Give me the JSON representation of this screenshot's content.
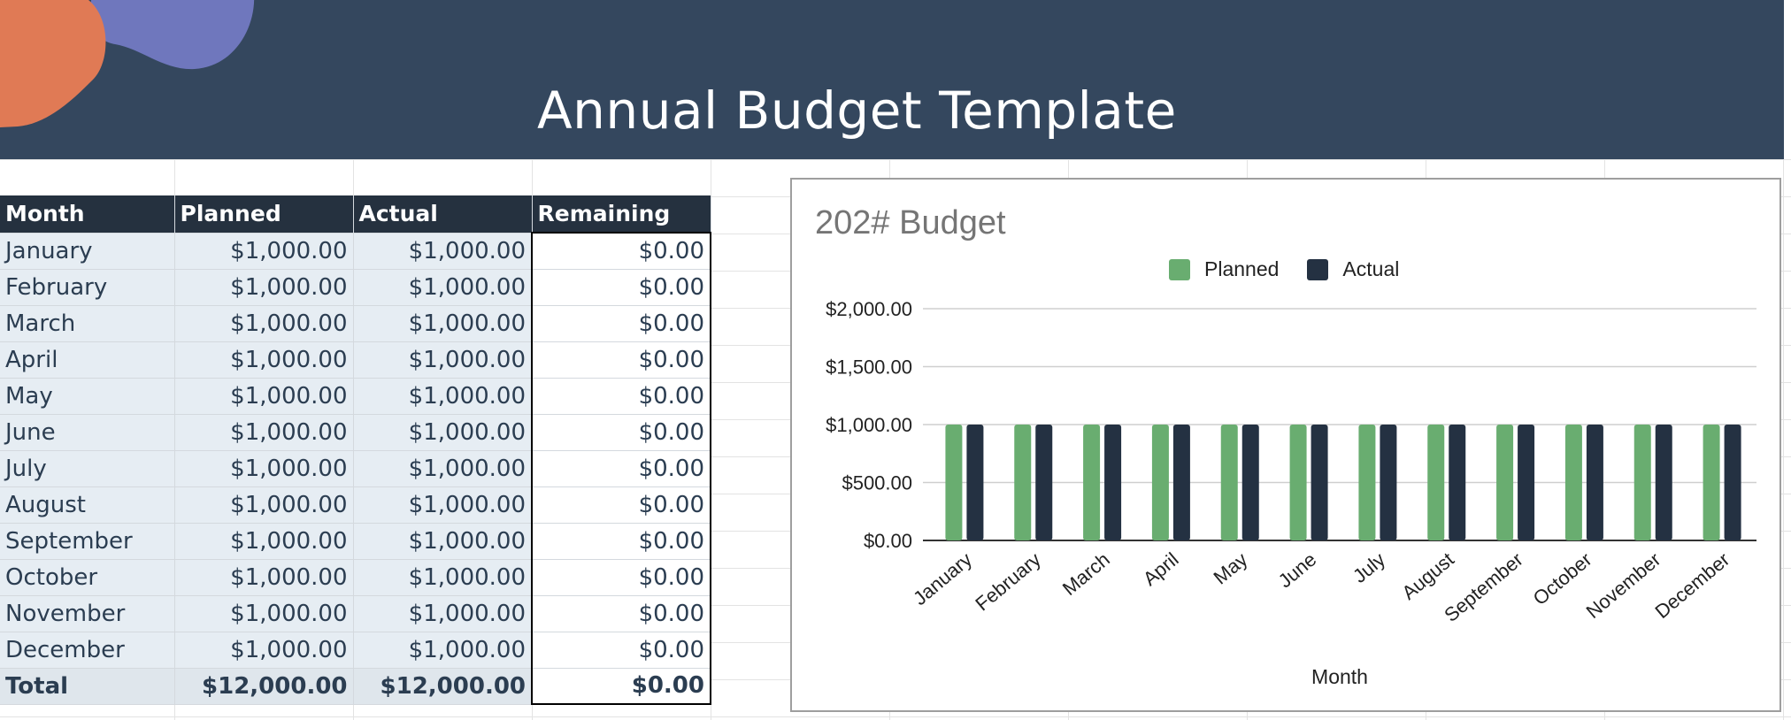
{
  "header": {
    "title": "Annual Budget Template"
  },
  "colors": {
    "banner": "#34475e",
    "blob_orange": "#e07a55",
    "blob_purple": "#6f77bd",
    "planned": "#69ad70",
    "actual": "#243142"
  },
  "table": {
    "columns": [
      "Month",
      "Planned",
      "Actual",
      "Remaining"
    ],
    "rows": [
      {
        "month": "January",
        "planned": "$1,000.00",
        "actual": "$1,000.00",
        "remaining": "$0.00"
      },
      {
        "month": "February",
        "planned": "$1,000.00",
        "actual": "$1,000.00",
        "remaining": "$0.00"
      },
      {
        "month": "March",
        "planned": "$1,000.00",
        "actual": "$1,000.00",
        "remaining": "$0.00"
      },
      {
        "month": "April",
        "planned": "$1,000.00",
        "actual": "$1,000.00",
        "remaining": "$0.00"
      },
      {
        "month": "May",
        "planned": "$1,000.00",
        "actual": "$1,000.00",
        "remaining": "$0.00"
      },
      {
        "month": "June",
        "planned": "$1,000.00",
        "actual": "$1,000.00",
        "remaining": "$0.00"
      },
      {
        "month": "July",
        "planned": "$1,000.00",
        "actual": "$1,000.00",
        "remaining": "$0.00"
      },
      {
        "month": "August",
        "planned": "$1,000.00",
        "actual": "$1,000.00",
        "remaining": "$0.00"
      },
      {
        "month": "September",
        "planned": "$1,000.00",
        "actual": "$1,000.00",
        "remaining": "$0.00"
      },
      {
        "month": "October",
        "planned": "$1,000.00",
        "actual": "$1,000.00",
        "remaining": "$0.00"
      },
      {
        "month": "November",
        "planned": "$1,000.00",
        "actual": "$1,000.00",
        "remaining": "$0.00"
      },
      {
        "month": "December",
        "planned": "$1,000.00",
        "actual": "$1,000.00",
        "remaining": "$0.00"
      }
    ],
    "total": {
      "label": "Total",
      "planned": "$12,000.00",
      "actual": "$12,000.00",
      "remaining": "$0.00"
    }
  },
  "chart_data": {
    "type": "bar",
    "title": "202# Budget",
    "xlabel": "Month",
    "ylabel": "",
    "categories": [
      "January",
      "February",
      "March",
      "April",
      "May",
      "June",
      "July",
      "August",
      "September",
      "October",
      "November",
      "December"
    ],
    "series": [
      {
        "name": "Planned",
        "values": [
          1000,
          1000,
          1000,
          1000,
          1000,
          1000,
          1000,
          1000,
          1000,
          1000,
          1000,
          1000
        ]
      },
      {
        "name": "Actual",
        "values": [
          1000,
          1000,
          1000,
          1000,
          1000,
          1000,
          1000,
          1000,
          1000,
          1000,
          1000,
          1000
        ]
      }
    ],
    "ylim": [
      0,
      2000
    ],
    "yticks": [
      0,
      500,
      1000,
      1500,
      2000
    ],
    "ytick_labels": [
      "$0.00",
      "$500.00",
      "$1,000.00",
      "$1,500.00",
      "$2,000.00"
    ],
    "legend": "top-center",
    "grid": true
  }
}
